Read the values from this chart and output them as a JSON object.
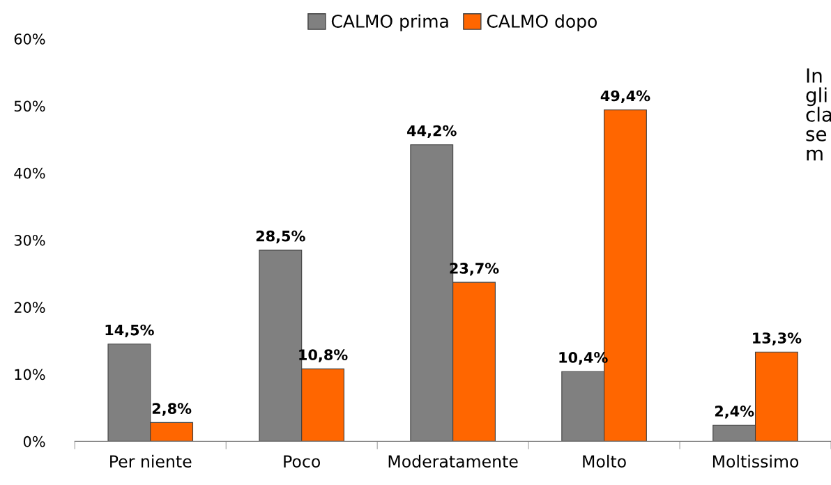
{
  "chart_data": {
    "type": "bar",
    "categories": [
      "Per niente",
      "Poco",
      "Moderatamente",
      "Molto",
      "Moltissimo"
    ],
    "series": [
      {
        "name": "CALMO prima",
        "color": "#808080",
        "values": [
          14.5,
          28.5,
          44.2,
          10.4,
          2.4
        ],
        "value_labels": [
          "14,5%",
          "28,5%",
          "44,2%",
          "10,4%",
          "2,4%"
        ]
      },
      {
        "name": "CALMO dopo",
        "color": "#ff6600",
        "values": [
          2.8,
          10.8,
          23.7,
          49.4,
          13.3
        ],
        "value_labels": [
          "2,8%",
          "10,8%",
          "23,7%",
          "49,4%",
          "13,3%"
        ]
      }
    ],
    "ylim": [
      0,
      60
    ],
    "yticks": [
      {
        "value": 0,
        "label": "0%"
      },
      {
        "value": 10,
        "label": "10%"
      },
      {
        "value": 20,
        "label": "20%"
      },
      {
        "value": 30,
        "label": "30%"
      },
      {
        "value": 40,
        "label": "40%"
      },
      {
        "value": 50,
        "label": "50%"
      },
      {
        "value": 60,
        "label": "60%"
      }
    ],
    "grid": false,
    "legend": "top",
    "annotations": [
      "In\ngli\ncla\nse\nm"
    ]
  }
}
